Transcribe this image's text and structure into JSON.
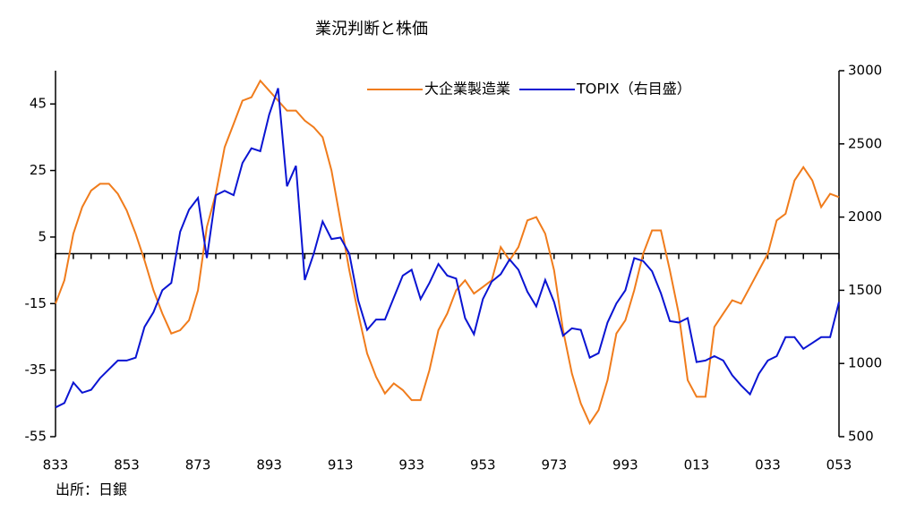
{
  "chart_data": {
    "type": "line",
    "title": "業況判断と株価",
    "source": "出所：日銀",
    "categories": [
      "833",
      null,
      null,
      null,
      null,
      null,
      null,
      null,
      "853",
      null,
      null,
      null,
      null,
      null,
      null,
      null,
      "873",
      null,
      null,
      null,
      null,
      null,
      null,
      null,
      "893",
      null,
      null,
      null,
      null,
      null,
      null,
      null,
      "913",
      null,
      null,
      null,
      null,
      null,
      null,
      null,
      "933",
      null,
      null,
      null,
      null,
      null,
      null,
      null,
      "953",
      null,
      null,
      null,
      null,
      null,
      null,
      null,
      "973",
      null,
      null,
      null,
      null,
      null,
      null,
      null,
      "993",
      null,
      null,
      null,
      null,
      null,
      null,
      null,
      "013",
      null,
      null,
      null,
      null,
      null,
      null,
      null,
      "033",
      null,
      null,
      null,
      null,
      null,
      null,
      null,
      "053"
    ],
    "series": [
      {
        "name": "大企業製造業",
        "color": "#f07c1c",
        "axis": "y",
        "values": [
          -15,
          -8,
          6,
          14,
          19,
          21,
          21,
          18,
          13,
          6,
          -2,
          -11,
          -18,
          -24,
          -23,
          -20,
          -11,
          8,
          18,
          32,
          39,
          46,
          47,
          52,
          49,
          46,
          43,
          43,
          40,
          38,
          35,
          25,
          10,
          -5,
          -18,
          -30,
          -37,
          -42,
          -39,
          -41,
          -44,
          -44,
          -35,
          -23,
          -18,
          -11,
          -8,
          -12,
          -10,
          -8,
          2,
          -2,
          2,
          10,
          11,
          6,
          -5,
          -23,
          -36,
          -45,
          -51,
          -47,
          -38,
          -24,
          -20,
          -11,
          0,
          7,
          7,
          -5,
          -18,
          -38,
          -43,
          -43,
          -22,
          -18,
          -14,
          -15,
          -10,
          -5,
          0,
          10,
          12,
          22,
          26,
          22,
          14,
          18,
          17
        ]
      },
      {
        "name": "TOPIX（右目盛）",
        "color": "#0a14d2",
        "axis": "y2",
        "values": [
          700,
          730,
          870,
          800,
          820,
          900,
          960,
          1020,
          1020,
          1040,
          1250,
          1350,
          1500,
          1550,
          1900,
          2050,
          2130,
          1720,
          2150,
          2180,
          2150,
          2370,
          2470,
          2450,
          2700,
          2880,
          2210,
          2350,
          1570,
          1750,
          1970,
          1850,
          1860,
          1750,
          1430,
          1230,
          1300,
          1300,
          1450,
          1600,
          1640,
          1440,
          1550,
          1680,
          1600,
          1580,
          1310,
          1200,
          1440,
          1560,
          1610,
          1710,
          1640,
          1490,
          1390,
          1570,
          1420,
          1190,
          1240,
          1230,
          1040,
          1070,
          1280,
          1410,
          1500,
          1720,
          1700,
          1630,
          1480,
          1290,
          1280,
          1310,
          1010,
          1020,
          1050,
          1020,
          920,
          850,
          790,
          930,
          1020,
          1050,
          1180,
          1180,
          1100,
          1140,
          1180,
          1180,
          1420
        ]
      }
    ],
    "ylim": [
      -55,
      55
    ],
    "yticks": [
      -55,
      -35,
      -15,
      5,
      25,
      45
    ],
    "y2lim": [
      500,
      3000
    ],
    "y2ticks": [
      500,
      1000,
      1500,
      2000,
      2500,
      3000
    ],
    "baseline": 0
  }
}
